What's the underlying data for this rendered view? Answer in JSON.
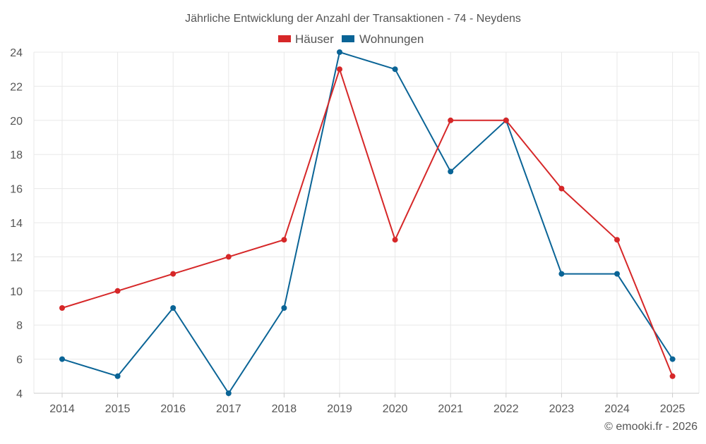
{
  "chart_data": {
    "type": "line",
    "title": "Jährliche Entwicklung der Anzahl der Transaktionen - 74 - Neydens",
    "xlabel": "",
    "ylabel": "",
    "categories": [
      "2014",
      "2015",
      "2016",
      "2017",
      "2018",
      "2019",
      "2020",
      "2021",
      "2022",
      "2023",
      "2024",
      "2025"
    ],
    "ylim": [
      4,
      24
    ],
    "yticks": [
      4,
      6,
      8,
      10,
      12,
      14,
      16,
      18,
      20,
      22,
      24
    ],
    "grid": true,
    "legend_position": "top-center",
    "series": [
      {
        "name": "Häuser",
        "color": "#d62728",
        "values": [
          9,
          10,
          11,
          12,
          13,
          23,
          13,
          20,
          20,
          16,
          13,
          5
        ]
      },
      {
        "name": "Wohnungen",
        "color": "#0a6496",
        "values": [
          6,
          5,
          9,
          4,
          9,
          24,
          23,
          17,
          20,
          11,
          11,
          6
        ]
      }
    ]
  },
  "credit": "© emooki.fr - 2026"
}
